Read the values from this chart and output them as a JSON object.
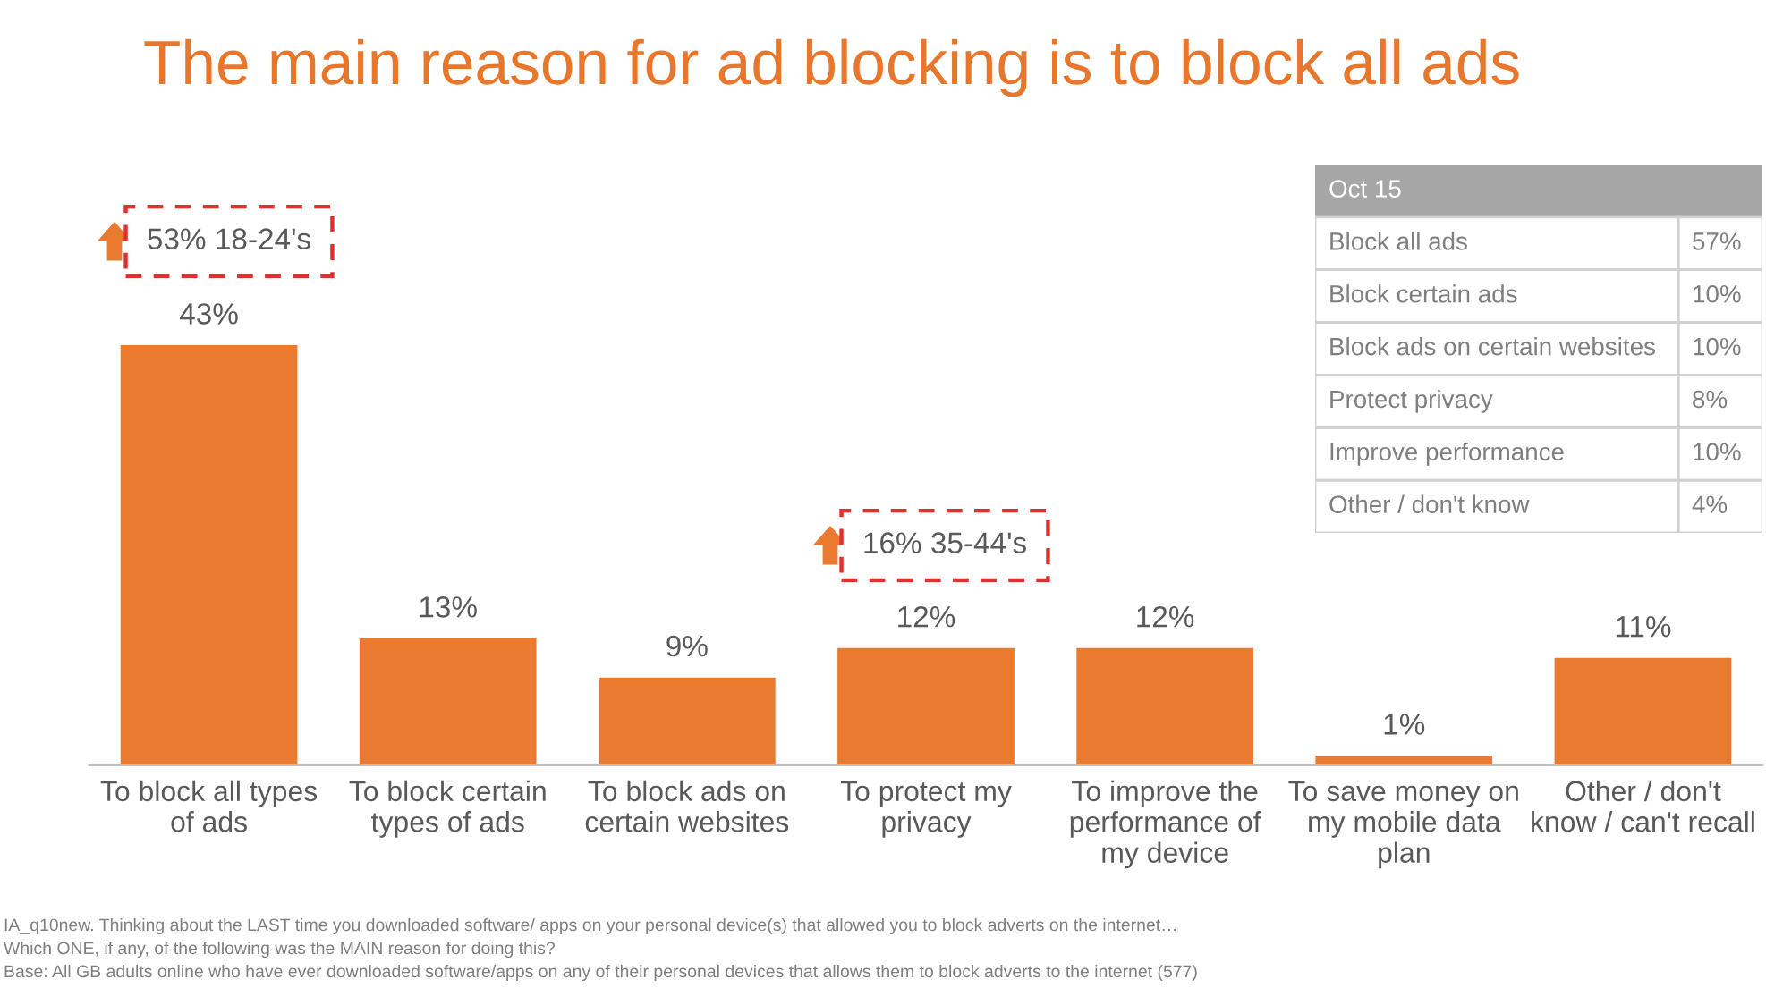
{
  "chart_data": [
    {
      "type": "bar",
      "title": "The main reason for ad blocking is to block all ads",
      "categories": [
        "To block all types\nof ads",
        "To block certain\ntypes of ads",
        "To block ads on\ncertain websites",
        "To protect my\nprivacy",
        "To improve the\nperformance of\nmy device",
        "To save money on\nmy mobile data\nplan",
        "Other / don't\nknow / can't recall"
      ],
      "values": [
        43,
        13,
        9,
        12,
        12,
        1,
        11
      ],
      "value_labels": [
        "43%",
        "13%",
        "9%",
        "12%",
        "12%",
        "1%",
        "11%"
      ],
      "color": "#ea7a30",
      "grid": false,
      "legend": false,
      "annotations": [
        "53% 18-24's",
        "16% 35-44's",
        "IA_q10new. Thinking about the LAST time you downloaded software/ apps on your personal device(s) that allowed you to block adverts on the internet…",
        "Which ONE, if any, of the following was the MAIN reason for doing this?",
        "Base: All GB adults online who have ever downloaded software/apps on any of their personal devices that allows them to block adverts to the internet (577)"
      ]
    },
    {
      "type": "other",
      "title": "Oct 15",
      "categories": [
        "Block all ads",
        "Block certain ads",
        "Block ads on certain websites",
        "Protect privacy",
        "Improve performance",
        "Other / don't know"
      ],
      "value_labels": [
        "57%",
        "10%",
        "10%",
        "8%",
        "10%",
        "4%"
      ]
    }
  ]
}
